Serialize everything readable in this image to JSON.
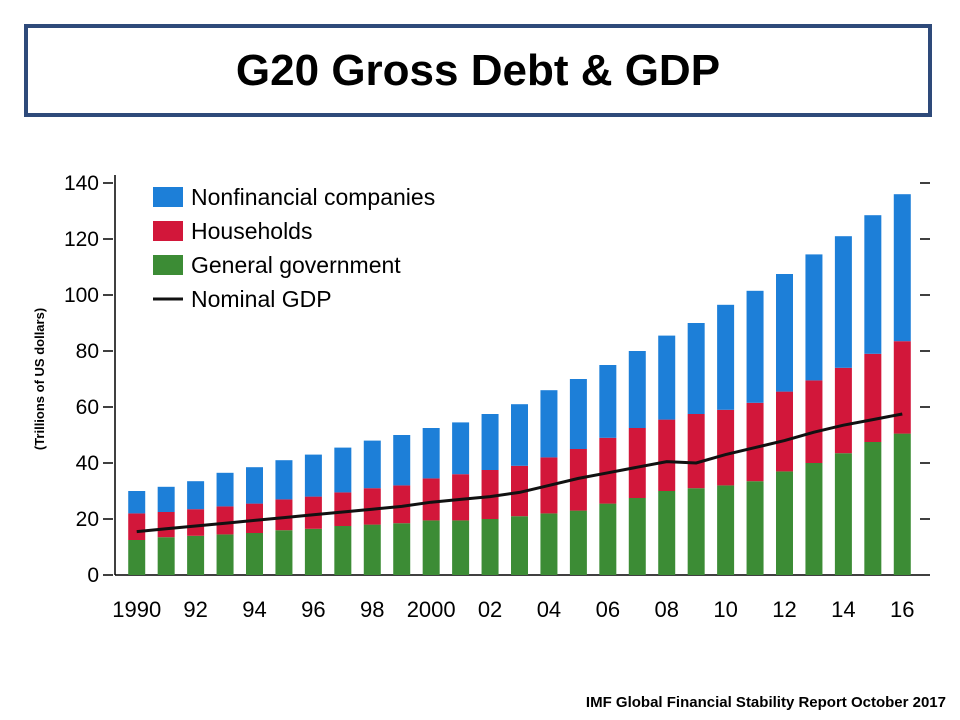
{
  "slide": {
    "title": "G20 Gross Debt & GDP",
    "source": "IMF Global Financial Stability Report October 2017"
  },
  "chart_data": {
    "type": "bar",
    "stacked": true,
    "ylabel": "(Trillions of US dollars)",
    "ylim": [
      0,
      140
    ],
    "yticks": [
      0,
      20,
      40,
      60,
      80,
      100,
      120,
      140
    ],
    "years": [
      1990,
      1991,
      1992,
      1993,
      1994,
      1995,
      1996,
      1997,
      1998,
      1999,
      2000,
      2001,
      2002,
      2003,
      2004,
      2005,
      2006,
      2007,
      2008,
      2009,
      2010,
      2011,
      2012,
      2013,
      2014,
      2015,
      2016
    ],
    "x_tick_labels": [
      {
        "year": 1990,
        "label": "1990"
      },
      {
        "year": 1992,
        "label": "92"
      },
      {
        "year": 1994,
        "label": "94"
      },
      {
        "year": 1996,
        "label": "96"
      },
      {
        "year": 1998,
        "label": "98"
      },
      {
        "year": 2000,
        "label": "2000"
      },
      {
        "year": 2002,
        "label": "02"
      },
      {
        "year": 2004,
        "label": "04"
      },
      {
        "year": 2006,
        "label": "06"
      },
      {
        "year": 2008,
        "label": "08"
      },
      {
        "year": 2010,
        "label": "10"
      },
      {
        "year": 2012,
        "label": "12"
      },
      {
        "year": 2014,
        "label": "14"
      },
      {
        "year": 2016,
        "label": "16"
      }
    ],
    "series": [
      {
        "name": "General government",
        "color": "#3c8c35",
        "values": [
          12.5,
          13.5,
          14,
          14.5,
          15,
          16,
          16.5,
          17.5,
          18,
          18.5,
          19.5,
          19.5,
          20,
          21,
          22,
          23,
          25.5,
          27.5,
          30,
          31,
          32,
          33.5,
          37,
          40,
          43.5,
          47.5,
          50.5
        ]
      },
      {
        "name": "Households",
        "color": "#d2173a",
        "values": [
          9.5,
          9,
          9.5,
          10,
          10.5,
          11,
          11.5,
          12,
          13,
          13.5,
          15,
          16.5,
          17.5,
          18,
          20,
          22,
          23.5,
          25,
          25.5,
          26.5,
          27,
          28,
          28.5,
          29.5,
          30.5,
          31.5,
          33
        ]
      },
      {
        "name": "Nonfinancial companies",
        "color": "#1d7fd8",
        "values": [
          8,
          9,
          10,
          12,
          13,
          14,
          15,
          16,
          17,
          18,
          18,
          18.5,
          20,
          22,
          24,
          25,
          26,
          27.5,
          30,
          32.5,
          37.5,
          40,
          42,
          45,
          47,
          49.5,
          52.5
        ]
      }
    ],
    "line": {
      "name": "Nominal GDP",
      "color": "#111111",
      "values": [
        15.5,
        16.5,
        17.5,
        18.5,
        19.5,
        20.5,
        21.5,
        22.5,
        23.5,
        24.5,
        26,
        27,
        28,
        29.5,
        32,
        34.5,
        36.5,
        38.5,
        40.5,
        40,
        43,
        45.5,
        48,
        51,
        53.5,
        55.5,
        57.5
      ]
    },
    "legend": {
      "position": "top-left",
      "order": [
        "Nonfinancial companies",
        "Households",
        "General government",
        "Nominal GDP"
      ]
    }
  }
}
